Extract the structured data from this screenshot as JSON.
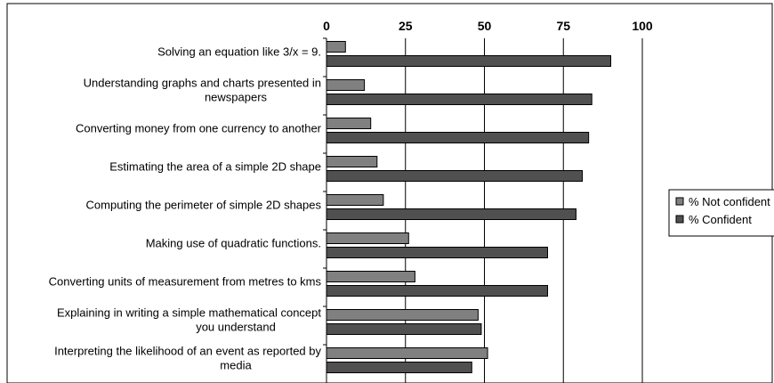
{
  "chart_data": {
    "type": "bar",
    "orientation": "horizontal",
    "title": "",
    "xlabel": "",
    "ylabel": "",
    "xlim": [
      0,
      100
    ],
    "x_ticks": [
      0,
      25,
      50,
      75,
      100
    ],
    "x_tick_labels": [
      "0",
      "25",
      "50",
      "75",
      "100"
    ],
    "x_axis_position": "top",
    "grid": true,
    "legend_position": "right",
    "categories": [
      [
        "Solving an equation like 3/x = 9."
      ],
      [
        "Understanding graphs and charts presented in",
        "newspapers"
      ],
      [
        "Converting money from one currency to another"
      ],
      [
        "Estimating the area of a simple 2D shape"
      ],
      [
        "Computing the perimeter of simple 2D shapes"
      ],
      [
        "Making use of quadratic functions."
      ],
      [
        "Converting units of measurement from metres to kms"
      ],
      [
        "Explaining in writing a simple mathematical concept",
        "you understand"
      ],
      [
        "Interpreting the likelihood of an event as reported by",
        "media"
      ]
    ],
    "series": [
      {
        "name": "% Not confident",
        "color": "#808080",
        "values": [
          6,
          12,
          14,
          16,
          18,
          26,
          28,
          48,
          51
        ]
      },
      {
        "name": "% Confident",
        "color": "#505050",
        "values": [
          90,
          84,
          83,
          81,
          79,
          70,
          70,
          49,
          46
        ]
      }
    ]
  }
}
